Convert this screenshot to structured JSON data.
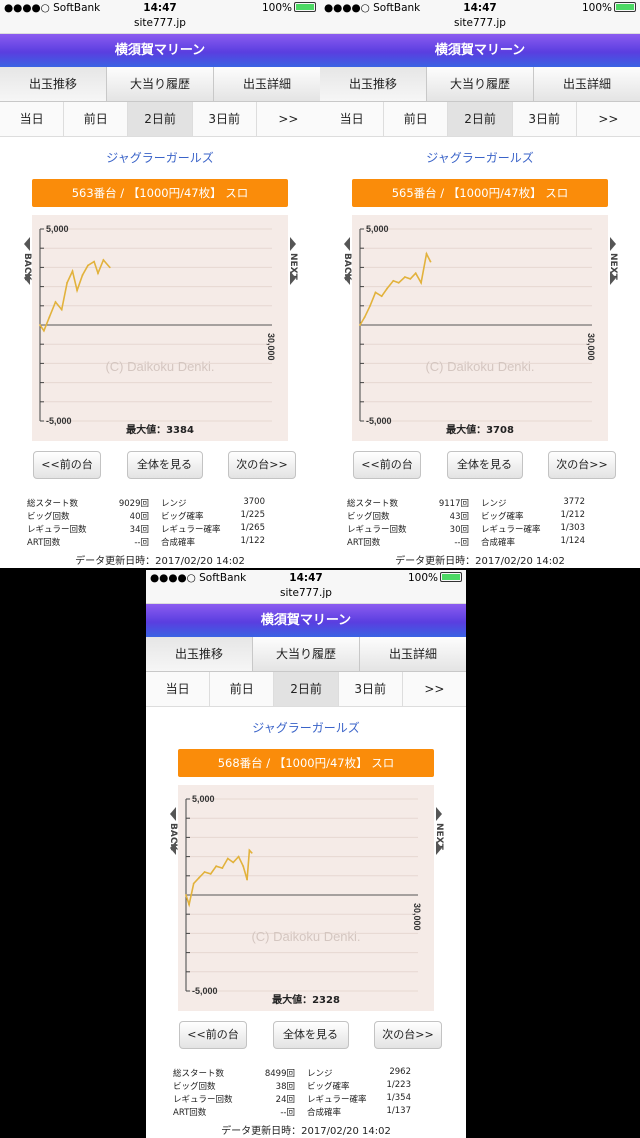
{
  "shared": {
    "status": {
      "carrier": "●●●●○ SoftBank",
      "time": "14:47",
      "battery": "100%"
    },
    "url": "site777.jp",
    "title": "横須賀マリーン",
    "tabs": [
      "出玉推移",
      "大当り履歴",
      "出玉詳細"
    ],
    "days": [
      "当日",
      "前日",
      "2日前",
      "3日前",
      ">>"
    ],
    "machine_name": "ジャグラーガールズ",
    "chart_ticks": {
      "top": "5,000",
      "bottom": "-5,000",
      "x_max": "30,000",
      "watermark": "(C) Daikoku Denki.",
      "back": "BACK",
      "next": "NEXT"
    },
    "buttons": {
      "prev": "<<前の台",
      "all": "全体を見る",
      "next": "次の台>>"
    },
    "stat_labels": {
      "total_start": "総スタート数",
      "big_count": "ビッグ回数",
      "reg_count": "レギュラー回数",
      "art_count": "ART回数",
      "range": "レンジ",
      "big_prob": "ビッグ確率",
      "reg_prob": "レギュラー確率",
      "combined_prob": "合成確率"
    },
    "updated_label": "データ更新日時：2017/02/20 14:02"
  },
  "colors": {
    "title_top": "#8b5cf0",
    "title_bottom": "#3a63e3",
    "orange": "#fa8c0a",
    "line": "#e2b23c",
    "chart_bg": "#f5ebe7",
    "link": "#3a63c8"
  },
  "panels": [
    {
      "unit": "563番台 / 【1000円/47枚】 スロ",
      "max_label": "最大値：3384",
      "stats": {
        "total_start": "9029回",
        "big_count": "40回",
        "reg_count": "34回",
        "art_count": "--回",
        "range": "3700",
        "big_prob": "1/225",
        "reg_prob": "1/265",
        "combined_prob": "1/122"
      }
    },
    {
      "unit": "565番台 / 【1000円/47枚】 スロ",
      "max_label": "最大値：3708",
      "stats": {
        "total_start": "9117回",
        "big_count": "43回",
        "reg_count": "30回",
        "art_count": "--回",
        "range": "3772",
        "big_prob": "1/212",
        "reg_prob": "1/303",
        "combined_prob": "1/124"
      }
    },
    {
      "unit": "568番台 / 【1000円/47枚】 スロ",
      "max_label": "最大値：2328",
      "stats": {
        "total_start": "8499回",
        "big_count": "38回",
        "reg_count": "24回",
        "art_count": "--回",
        "range": "2962",
        "big_prob": "1/223",
        "reg_prob": "1/354",
        "combined_prob": "1/137"
      }
    }
  ],
  "chart_data": [
    {
      "type": "line",
      "xlim": [
        0,
        30000
      ],
      "ylim": [
        -5000,
        5000
      ],
      "x": [
        0,
        500,
        1200,
        2000,
        2800,
        3500,
        4200,
        4800,
        5500,
        6200,
        7000,
        7500,
        8200,
        9029
      ],
      "y": [
        0,
        -300,
        400,
        1200,
        800,
        2200,
        2800,
        1800,
        2600,
        3100,
        3300,
        2700,
        3384,
        3000
      ]
    },
    {
      "type": "line",
      "xlim": [
        0,
        30000
      ],
      "ylim": [
        -5000,
        5000
      ],
      "x": [
        0,
        600,
        1300,
        2000,
        2800,
        3500,
        4300,
        5000,
        5800,
        6500,
        7200,
        7900,
        8600,
        9117
      ],
      "y": [
        0,
        400,
        1000,
        1700,
        1500,
        1900,
        2300,
        2200,
        2500,
        2400,
        2700,
        2200,
        3708,
        3300
      ]
    },
    {
      "type": "line",
      "xlim": [
        0,
        30000
      ],
      "ylim": [
        -5000,
        5000
      ],
      "x": [
        0,
        400,
        1000,
        1700,
        2400,
        3200,
        3900,
        4700,
        5400,
        6100,
        6800,
        7400,
        7900,
        8200,
        8499
      ],
      "y": [
        0,
        -500,
        600,
        900,
        1200,
        1100,
        1500,
        1400,
        1900,
        1700,
        2000,
        1500,
        800,
        2328,
        2200
      ]
    }
  ]
}
